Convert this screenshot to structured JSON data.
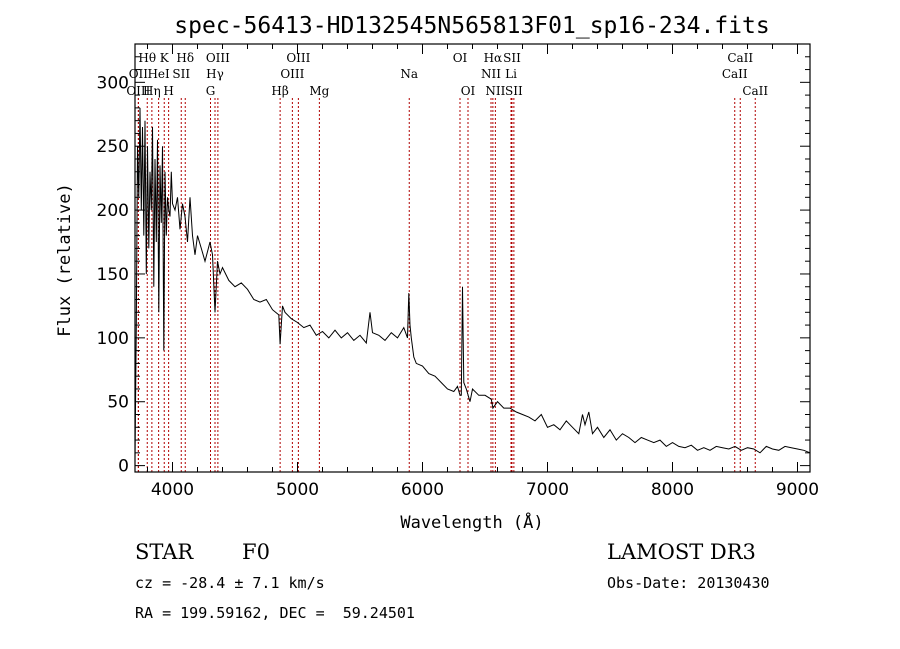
{
  "chart_data": {
    "type": "line",
    "title": "spec-56413-HD132545N565813F01_sp16-234.fits",
    "xlabel": "Wavelength (Å)",
    "ylabel": "Flux (relative)",
    "xlim": [
      3700,
      9100
    ],
    "ylim": [
      -5,
      330
    ],
    "x_ticks": [
      4000,
      5000,
      6000,
      7000,
      8000,
      9000
    ],
    "y_ticks": [
      0,
      50,
      100,
      150,
      200,
      250,
      300
    ],
    "series": [
      {
        "name": "flux",
        "x": [
          3700,
          3710,
          3720,
          3730,
          3740,
          3750,
          3760,
          3770,
          3780,
          3790,
          3800,
          3810,
          3820,
          3830,
          3840,
          3850,
          3860,
          3870,
          3880,
          3890,
          3900,
          3910,
          3920,
          3930,
          3940,
          3950,
          3960,
          3970,
          3980,
          3990,
          4000,
          4020,
          4040,
          4060,
          4080,
          4100,
          4120,
          4140,
          4160,
          4180,
          4200,
          4230,
          4260,
          4300,
          4320,
          4340,
          4360,
          4380,
          4400,
          4450,
          4500,
          4550,
          4600,
          4650,
          4700,
          4750,
          4800,
          4850,
          4861,
          4880,
          4900,
          4950,
          5000,
          5050,
          5100,
          5150,
          5200,
          5250,
          5300,
          5350,
          5400,
          5450,
          5500,
          5550,
          5580,
          5600,
          5650,
          5700,
          5750,
          5800,
          5850,
          5880,
          5890,
          5900,
          5910,
          5930,
          5950,
          6000,
          6050,
          6100,
          6150,
          6200,
          6250,
          6280,
          6300,
          6310,
          6320,
          6330,
          6350,
          6380,
          6400,
          6450,
          6500,
          6550,
          6563,
          6600,
          6650,
          6700,
          6750,
          6800,
          6850,
          6900,
          6950,
          7000,
          7050,
          7100,
          7150,
          7200,
          7250,
          7280,
          7300,
          7330,
          7360,
          7400,
          7450,
          7500,
          7550,
          7600,
          7650,
          7700,
          7750,
          7800,
          7850,
          7900,
          7950,
          8000,
          8050,
          8100,
          8150,
          8200,
          8250,
          8300,
          8350,
          8400,
          8450,
          8500,
          8550,
          8600,
          8650,
          8700,
          8750,
          8800,
          8850,
          8900,
          8950,
          9000,
          9050,
          9100
        ],
        "values": [
          5,
          110,
          250,
          210,
          280,
          200,
          265,
          180,
          270,
          150,
          250,
          170,
          230,
          200,
          265,
          140,
          240,
          175,
          255,
          120,
          235,
          190,
          250,
          90,
          230,
          180,
          210,
          200,
          195,
          230,
          205,
          200,
          210,
          185,
          205,
          195,
          175,
          210,
          180,
          165,
          180,
          170,
          160,
          175,
          165,
          120,
          160,
          150,
          155,
          145,
          140,
          143,
          138,
          130,
          128,
          130,
          122,
          118,
          95,
          125,
          120,
          115,
          112,
          108,
          110,
          102,
          105,
          100,
          106,
          100,
          104,
          98,
          102,
          96,
          120,
          104,
          102,
          98,
          104,
          100,
          108,
          100,
          135,
          110,
          100,
          85,
          80,
          78,
          72,
          70,
          65,
          60,
          58,
          62,
          55,
          55,
          140,
          65,
          60,
          50,
          60,
          55,
          55,
          52,
          45,
          50,
          45,
          45,
          42,
          40,
          38,
          35,
          40,
          30,
          32,
          28,
          35,
          30,
          25,
          40,
          32,
          42,
          25,
          30,
          22,
          28,
          20,
          25,
          22,
          18,
          22,
          20,
          18,
          20,
          15,
          18,
          15,
          14,
          16,
          12,
          14,
          12,
          15,
          14,
          13,
          15,
          12,
          14,
          13,
          10,
          15,
          13,
          12,
          15,
          14,
          13,
          12,
          10
        ]
      }
    ],
    "line_markers": [
      {
        "name": "OII",
        "x": 3727,
        "row": 1
      },
      {
        "name": "OIII",
        "x": 3727,
        "row": 2
      },
      {
        "name": "Hθ",
        "x": 3798,
        "row": 0
      },
      {
        "name": "Hη",
        "x": 3835,
        "row": 2
      },
      {
        "name": "HeI",
        "x": 3889,
        "row": 1
      },
      {
        "name": "K",
        "x": 3934,
        "row": 0
      },
      {
        "name": "H",
        "x": 3969,
        "row": 2
      },
      {
        "name": "SII",
        "x": 4070,
        "row": 1
      },
      {
        "name": "Hδ",
        "x": 4102,
        "row": 0
      },
      {
        "name": "G",
        "x": 4304,
        "row": 2
      },
      {
        "name": "Hγ",
        "x": 4340,
        "row": 1
      },
      {
        "name": "OIII",
        "x": 4363,
        "row": 0
      },
      {
        "name": "Hβ",
        "x": 4861,
        "row": 2
      },
      {
        "name": "OIII",
        "x": 4959,
        "row": 1
      },
      {
        "name": "OIII",
        "x": 5007,
        "row": 0
      },
      {
        "name": "Mg",
        "x": 5175,
        "row": 2
      },
      {
        "name": "Na",
        "x": 5894,
        "row": 1
      },
      {
        "name": "OI",
        "x": 6300,
        "row": 0
      },
      {
        "name": "OI",
        "x": 6364,
        "row": 2
      },
      {
        "name": "NII",
        "x": 6548,
        "row": 1
      },
      {
        "name": "Hα",
        "x": 6563,
        "row": 0
      },
      {
        "name": "NII",
        "x": 6583,
        "row": 2
      },
      {
        "name": "Li",
        "x": 6708,
        "row": 1
      },
      {
        "name": "SII",
        "x": 6716,
        "row": 0
      },
      {
        "name": "SII",
        "x": 6731,
        "row": 2
      },
      {
        "name": "CaII",
        "x": 8498,
        "row": 1
      },
      {
        "name": "CaII",
        "x": 8542,
        "row": 0
      },
      {
        "name": "CaII",
        "x": 8662,
        "row": 2
      }
    ]
  },
  "info": {
    "object_class": "STAR",
    "subclass": "F0",
    "survey": "LAMOST DR3",
    "cz": "cz = -28.4 ± 7.1 km/s",
    "obs_date": "Obs-Date: 20130430",
    "coords": "RA = 199.59162, DEC =  59.24501"
  }
}
